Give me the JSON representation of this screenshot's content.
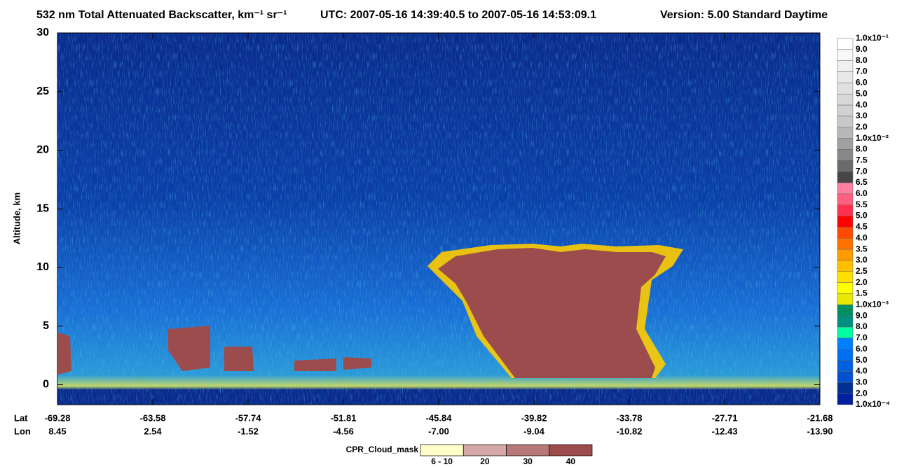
{
  "chart_data": {
    "type": "heatmap",
    "title": "532 nm Total Attenuated Backscatter, km⁻¹ sr⁻¹",
    "utc": "UTC:  2007-05-16 14:39:40.5  to  2007-05-16 14:53:09.1",
    "version": "Version: 5.00  Standard  Daytime",
    "ylabel": "Altitude, km",
    "ylim": [
      -1.7,
      30
    ],
    "yticks": [
      0,
      5,
      10,
      15,
      20,
      25,
      30
    ],
    "lat_label": "Lat",
    "lon_label": "Lon",
    "xticks": [
      -69.28,
      -63.58,
      -57.74,
      -51.81,
      -45.84,
      -39.82,
      -33.78,
      -27.71,
      -21.68
    ],
    "lon_ticks": [
      8.45,
      2.54,
      -1.52,
      -4.56,
      {
        "value": -7,
        "label": "-7.00"
      },
      -9.04,
      -10.82,
      -12.43,
      {
        "value": -13.9,
        "label": "-13.90"
      }
    ],
    "colorbar_labels": [
      "1.0x10⁻¹",
      "9.0",
      "8.0",
      "7.0",
      "6.0",
      "5.0",
      "4.0",
      "3.0",
      "2.0",
      "1.0x10⁻²",
      "8.0",
      "7.5",
      "7.0",
      "6.5",
      "6.0",
      "5.5",
      "5.0",
      "4.5",
      "4.0",
      "3.5",
      "3.0",
      "2.5",
      "2.0",
      "1.5",
      "1.0x10⁻³",
      "9.0",
      "8.0",
      "7.0",
      "6.0",
      "5.0",
      "4.0",
      "3.0",
      "2.0",
      "1.0x10⁻⁴"
    ],
    "colorbar_colors": [
      "#ffffff",
      "#f8f8f8",
      "#f0f0f0",
      "#e8e8e8",
      "#e0e0e0",
      "#d8d8d8",
      "#d0d0d0",
      "#c8c8c8",
      "#b8b8b8",
      "#a0a0a0",
      "#888888",
      "#6a6a6a",
      "#464646",
      "#ff7fa0",
      "#ff5f80",
      "#ff3050",
      "#ff0000",
      "#ff4a00",
      "#ff7000",
      "#ff9a00",
      "#ffc000",
      "#ffe000",
      "#ffff00",
      "#e8e800",
      "#009060",
      "#009080",
      "#00ffa0",
      "#0080ff",
      "#0070f0",
      "#0060e0",
      "#0050d0",
      "#003090",
      "#0020a0"
    ],
    "mask_title": "CPR_Cloud_mask",
    "mask_labels": [
      "6 - 10",
      "20",
      "30",
      "40"
    ],
    "mask_colors": [
      "#ffffc8",
      "#d4a8a8",
      "#b87878",
      "#9c4c4c"
    ]
  }
}
